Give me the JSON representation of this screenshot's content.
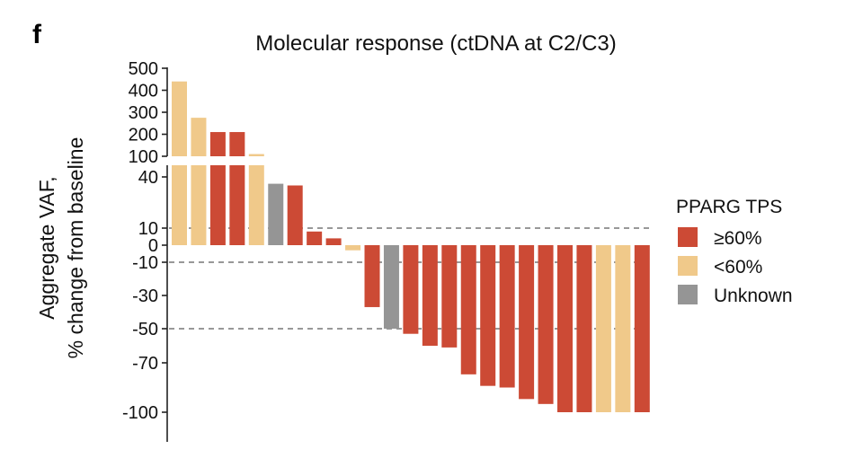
{
  "panel_label": "f",
  "chart_data": {
    "type": "bar",
    "title": "Molecular response (ctDNA at C2/C3)",
    "ylabel_line1": "Aggregate VAF,",
    "ylabel_line2": "% change from baseline",
    "y_scale": "broken",
    "upper_ticks": [
      "500",
      "400",
      "300",
      "200",
      "100"
    ],
    "lower_ticks": [
      "40",
      "10",
      "0",
      "-10",
      "-30",
      "-50",
      "-70",
      "-100"
    ],
    "reference_lines": [
      10,
      -10,
      -50
    ],
    "legend": {
      "title": "PPARG TPS",
      "placement": "right",
      "entries": [
        {
          "label": "≥60%",
          "group": "hi",
          "color": "#cc4a35"
        },
        {
          "label": "<60%",
          "group": "lo",
          "color": "#f0c98a"
        },
        {
          "label": "Unknown",
          "group": "unk",
          "color": "#959595"
        }
      ]
    },
    "bars": [
      {
        "value": 440,
        "group": "lo"
      },
      {
        "value": 275,
        "group": "lo"
      },
      {
        "value": 210,
        "group": "hi"
      },
      {
        "value": 210,
        "group": "hi"
      },
      {
        "value": 110,
        "group": "lo"
      },
      {
        "value": 36,
        "group": "unk"
      },
      {
        "value": 35,
        "group": "hi"
      },
      {
        "value": 8,
        "group": "hi"
      },
      {
        "value": 4,
        "group": "hi"
      },
      {
        "value": -3,
        "group": "lo"
      },
      {
        "value": -37,
        "group": "hi"
      },
      {
        "value": -50,
        "group": "unk"
      },
      {
        "value": -53,
        "group": "hi"
      },
      {
        "value": -60,
        "group": "hi"
      },
      {
        "value": -61,
        "group": "hi"
      },
      {
        "value": -77,
        "group": "hi"
      },
      {
        "value": -84,
        "group": "hi"
      },
      {
        "value": -85,
        "group": "hi"
      },
      {
        "value": -92,
        "group": "hi"
      },
      {
        "value": -95,
        "group": "hi"
      },
      {
        "value": -100,
        "group": "hi"
      },
      {
        "value": -100,
        "group": "hi"
      },
      {
        "value": -100,
        "group": "lo"
      },
      {
        "value": -100,
        "group": "lo"
      },
      {
        "value": -100,
        "group": "hi"
      }
    ]
  }
}
